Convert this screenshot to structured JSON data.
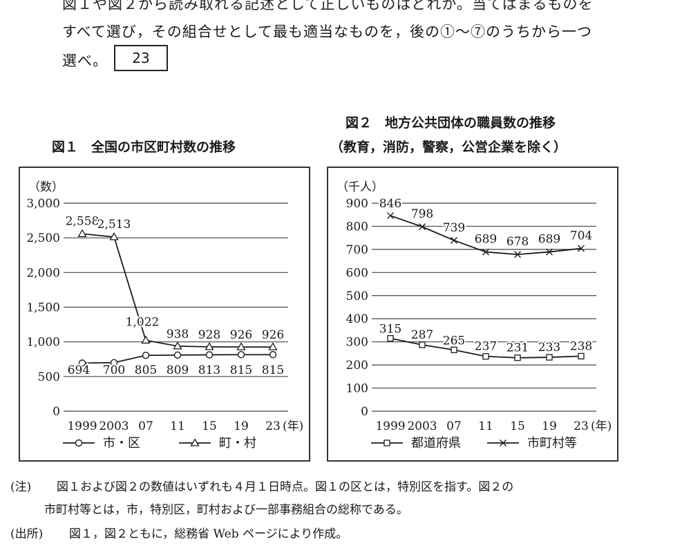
{
  "question": {
    "line_top": "図１や図２から読み取れる記述として正しいものはどれか。当てはまるものを",
    "line_mid": "すべて選び，その組合せとして最も適当なものを，後の①～⑦のうちから一つ",
    "line_last": "選べ。",
    "answer_number": "23"
  },
  "figure1": {
    "title": "図１　全国の市区町村数の推移"
  },
  "figure2": {
    "title_line1": "図２　地方公共団体の職員数の推移",
    "title_line2": "（教育，消防，警察，公営企業を除く）"
  },
  "chart_data": [
    {
      "type": "line",
      "unit_label": "（数）",
      "x": [
        "1999",
        "2003",
        "07",
        "11",
        "15",
        "19",
        "23"
      ],
      "x_suffix": "(年)",
      "ylim": [
        0,
        3000
      ],
      "yticks": [
        "0",
        "500",
        "1,000",
        "1,500",
        "2,000",
        "2,500",
        "3,000"
      ],
      "ytick_values": [
        0,
        500,
        1000,
        1500,
        2000,
        2500,
        3000
      ],
      "grid": true,
      "legend_position": "bottom",
      "series": [
        {
          "name": "市・区",
          "marker": "circle",
          "values": [
            694,
            700,
            805,
            809,
            813,
            815,
            815
          ],
          "labels": [
            "694",
            "700",
            "805",
            "809",
            "813",
            "815",
            "815"
          ]
        },
        {
          "name": "町・村",
          "marker": "triangle",
          "values": [
            2558,
            2513,
            1022,
            938,
            928,
            926,
            926
          ],
          "labels": [
            "2,558",
            "2,513",
            "1,022",
            "938",
            "928",
            "926",
            "926"
          ]
        }
      ]
    },
    {
      "type": "line",
      "unit_label": "（千人）",
      "x": [
        "1999",
        "2003",
        "07",
        "11",
        "15",
        "19",
        "23"
      ],
      "x_suffix": "(年)",
      "ylim": [
        0,
        900
      ],
      "yticks": [
        "0",
        "100",
        "200",
        "300",
        "400",
        "500",
        "600",
        "700",
        "800",
        "900"
      ],
      "ytick_values": [
        0,
        100,
        200,
        300,
        400,
        500,
        600,
        700,
        800,
        900
      ],
      "grid": true,
      "legend_position": "bottom",
      "series": [
        {
          "name": "都道府県",
          "marker": "square",
          "values": [
            315,
            287,
            265,
            237,
            231,
            233,
            238
          ],
          "labels": [
            "315",
            "287",
            "265",
            "237",
            "231",
            "233",
            "238"
          ]
        },
        {
          "name": "市町村等",
          "marker": "cross",
          "values": [
            846,
            798,
            739,
            689,
            678,
            689,
            704
          ],
          "labels": [
            "846",
            "798",
            "739",
            "689",
            "678",
            "689",
            "704"
          ]
        }
      ]
    }
  ],
  "notes": {
    "note_label": "(注)",
    "note_line1": "図１および図２の数値はいずれも４月１日時点。図１の区とは，特別区を指す。図２の",
    "note_line2": "市町村等とは，市，特別区，町村および一部事務組合の総称である。",
    "source_label": "(出所)",
    "source_text": "図１，図２ともに，総務省 Web ページにより作成。"
  },
  "colors": {
    "line": "#1a1a1a",
    "grid": "#444444",
    "border": "#333333"
  }
}
